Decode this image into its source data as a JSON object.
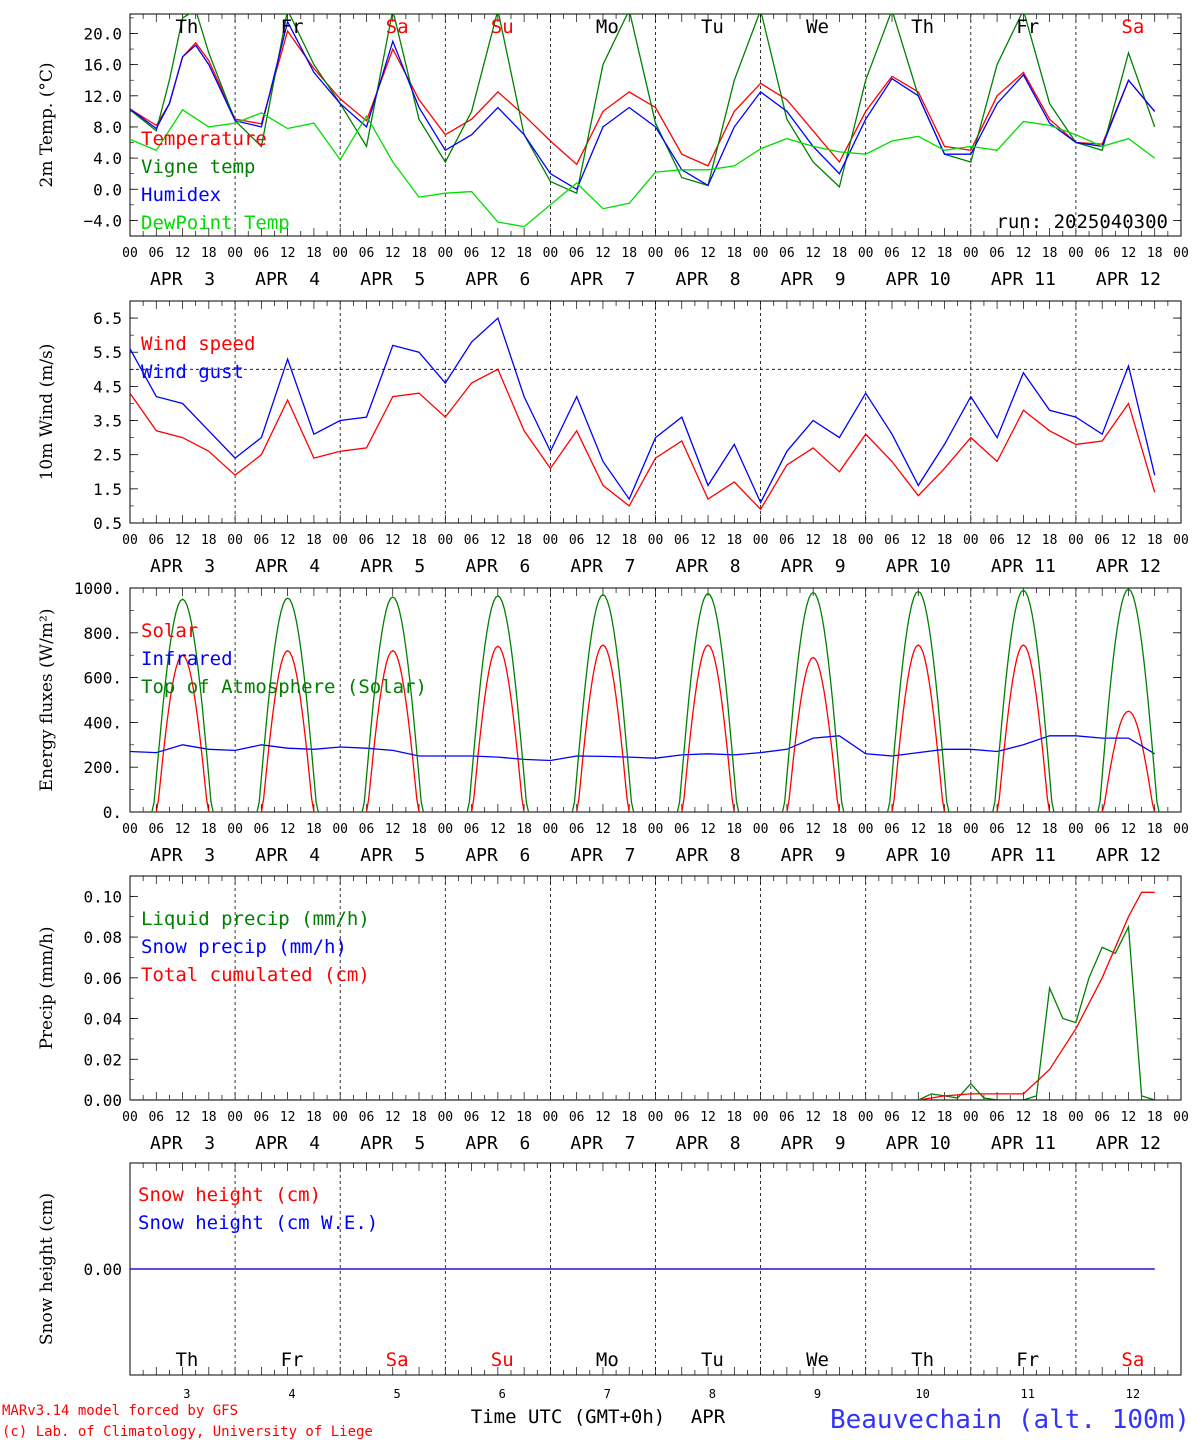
{
  "days": [
    "Th",
    "Fr",
    "Sa",
    "Su",
    "Mo",
    "Tu",
    "We",
    "Th",
    "Fr",
    "Sa"
  ],
  "day_colors": [
    "#000000",
    "#000000",
    "#ff0000",
    "#ff0000",
    "#000000",
    "#000000",
    "#000000",
    "#000000",
    "#000000",
    "#ff0000"
  ],
  "date_labels": [
    "APR  3",
    "APR  4",
    "APR  5",
    "APR  6",
    "APR  7",
    "APR  8",
    "APR  9",
    "APR 10",
    "APR 11",
    "APR 12"
  ],
  "hour_ticks": [
    "00",
    "06",
    "12",
    "18"
  ],
  "last_hour_tick": "00",
  "day_numbers": [
    "3",
    "4",
    "5",
    "6",
    "7",
    "8",
    "9",
    "10",
    "11",
    "12"
  ],
  "run_label": "run: 2025040300",
  "xlabel": "Time UTC (GMT+0h)",
  "month_label": "APR",
  "footer": {
    "line1": "MARv3.14 model forced by GFS",
    "line2": "(c) Lab. of Climatology, University of Liege",
    "station": "Beauvechain (alt. 100m)"
  },
  "colors": {
    "red": "#ff0000",
    "green": "#008000",
    "blue": "#0000ff",
    "lightgreen": "#00dd00",
    "station": "#3333ff"
  },
  "chart_data": [
    {
      "type": "line",
      "ylabel": "2m Temp. (°C)",
      "ylim": [
        -6,
        22.5
      ],
      "yticks": [
        -4,
        0,
        4,
        8,
        12,
        16,
        20
      ],
      "ytick_labels": [
        "−4.0",
        "0.0",
        "4.0",
        "8.0",
        "12.0",
        "16.0",
        "20.0"
      ],
      "series": [
        {
          "name": "Temperature",
          "color": "#ff0000",
          "x": [
            0,
            6,
            9,
            12,
            15,
            18,
            24,
            30,
            36,
            42,
            48,
            54,
            60,
            66,
            72,
            78,
            84,
            90,
            96,
            102,
            108,
            114,
            120,
            126,
            132,
            138,
            144,
            150,
            156,
            162,
            168,
            174,
            180,
            186,
            192,
            198,
            204,
            210,
            216,
            222,
            228,
            234
          ],
          "y": [
            10.3,
            8.2,
            11,
            17,
            18.8,
            16.5,
            9.0,
            8.4,
            20.3,
            15.5,
            11.6,
            8.8,
            18.0,
            11.5,
            7.0,
            9.0,
            12.5,
            9.5,
            6.2,
            3.2,
            10.0,
            12.5,
            10.5,
            4.5,
            3.0,
            10.0,
            13.6,
            11.5,
            7.5,
            3.5,
            10.0,
            14.5,
            12.5,
            5.5,
            5.0,
            12.0,
            15.0,
            9.0,
            6.0,
            5.8,
            14.0,
            10.0
          ]
        },
        {
          "name": "Vigne temp",
          "color": "#008000",
          "x": [
            0,
            6,
            9,
            12,
            15,
            18,
            24,
            30,
            36,
            42,
            48,
            54,
            60,
            66,
            72,
            78,
            84,
            90,
            96,
            102,
            108,
            114,
            120,
            126,
            132,
            138,
            144,
            150,
            156,
            162,
            168,
            174,
            180,
            186,
            192,
            198,
            204,
            210,
            216,
            222,
            228,
            234
          ],
          "y": [
            10.2,
            7.5,
            14,
            22,
            23,
            17.5,
            8.8,
            5.5,
            23,
            16,
            11,
            5.5,
            23,
            9,
            3.5,
            10,
            23,
            7,
            1,
            -0.5,
            16,
            23,
            8.5,
            1.5,
            0.5,
            14.0,
            23.0,
            9.0,
            3.5,
            0.3,
            14,
            23,
            12,
            4.5,
            3.5,
            16,
            23,
            11,
            6.0,
            5.0,
            17.5,
            8.0
          ]
        },
        {
          "name": "Humidex",
          "color": "#0000ff",
          "x": [
            0,
            6,
            9,
            12,
            15,
            18,
            24,
            30,
            36,
            42,
            48,
            54,
            60,
            66,
            72,
            78,
            84,
            90,
            96,
            102,
            108,
            114,
            120,
            126,
            132,
            138,
            144,
            150,
            156,
            162,
            168,
            174,
            180,
            186,
            192,
            198,
            204,
            210,
            216,
            222,
            228,
            234
          ],
          "y": [
            10.3,
            7.8,
            11,
            17,
            18.5,
            16.0,
            8.8,
            8.0,
            21.5,
            15.0,
            11.0,
            8.0,
            19.0,
            10.5,
            5.0,
            7.0,
            10.5,
            7.0,
            2.0,
            0.0,
            8.0,
            10.5,
            8.0,
            2.5,
            0.5,
            8.0,
            12.5,
            10.0,
            5.5,
            2.0,
            9.0,
            14.2,
            12.0,
            4.5,
            4.5,
            11.0,
            14.7,
            8.5,
            6.0,
            5.5,
            14.0,
            10.0
          ]
        },
        {
          "name": "DewPoint Temp",
          "color": "#00dd00",
          "x": [
            0,
            6,
            12,
            18,
            24,
            30,
            36,
            42,
            48,
            54,
            60,
            66,
            72,
            78,
            84,
            90,
            96,
            102,
            108,
            114,
            120,
            126,
            132,
            138,
            144,
            150,
            156,
            162,
            168,
            174,
            180,
            186,
            192,
            198,
            204,
            210,
            216,
            222,
            228,
            234
          ],
          "y": [
            6.4,
            5.0,
            10.2,
            8.0,
            8.5,
            9.8,
            7.8,
            8.5,
            3.8,
            9.4,
            3.5,
            -1.0,
            -0.5,
            -0.3,
            -4.2,
            -4.8,
            -2.0,
            0.8,
            -2.5,
            -1.8,
            2.2,
            2.5,
            2.5,
            3.0,
            5.2,
            6.5,
            5.5,
            4.8,
            4.5,
            6.2,
            6.8,
            5.0,
            5.5,
            5.0,
            8.7,
            8.2,
            7.0,
            5.5,
            6.5,
            4.0
          ]
        }
      ]
    },
    {
      "type": "line",
      "ylabel": "10m Wind (m/s)",
      "ylim": [
        0.5,
        7.0
      ],
      "yticks": [
        0.5,
        1.5,
        2.5,
        3.5,
        4.5,
        5.5,
        6.5
      ],
      "ytick_labels": [
        "0.5",
        "1.5",
        "2.5",
        "3.5",
        "4.5",
        "5.5",
        "6.5"
      ],
      "reference_line": 5.0,
      "series": [
        {
          "name": "Wind speed",
          "color": "#ff0000",
          "x": [
            0,
            6,
            12,
            18,
            24,
            30,
            36,
            42,
            48,
            54,
            60,
            66,
            72,
            78,
            84,
            90,
            96,
            102,
            108,
            114,
            120,
            126,
            132,
            138,
            144,
            150,
            156,
            162,
            168,
            174,
            180,
            186,
            192,
            198,
            204,
            210,
            216,
            222,
            228,
            234
          ],
          "y": [
            4.3,
            3.2,
            3.0,
            2.6,
            1.9,
            2.5,
            4.1,
            2.4,
            2.6,
            2.7,
            4.2,
            4.3,
            3.6,
            4.6,
            5.0,
            3.2,
            2.1,
            3.2,
            1.6,
            1.0,
            2.4,
            2.9,
            1.2,
            1.7,
            0.9,
            2.2,
            2.7,
            2.0,
            3.1,
            2.3,
            1.3,
            2.1,
            3.0,
            2.3,
            3.8,
            3.2,
            2.8,
            2.9,
            4.0,
            1.4
          ]
        },
        {
          "name": "Wind gust",
          "color": "#0000ff",
          "x": [
            0,
            6,
            12,
            18,
            24,
            30,
            36,
            42,
            48,
            54,
            60,
            66,
            72,
            78,
            84,
            90,
            96,
            102,
            108,
            114,
            120,
            126,
            132,
            138,
            144,
            150,
            156,
            162,
            168,
            174,
            180,
            186,
            192,
            198,
            204,
            210,
            216,
            222,
            228,
            234
          ],
          "y": [
            5.6,
            4.2,
            4.0,
            3.2,
            2.4,
            3.0,
            5.3,
            3.1,
            3.5,
            3.6,
            5.7,
            5.5,
            4.6,
            5.8,
            6.5,
            4.2,
            2.6,
            4.2,
            2.3,
            1.2,
            3.0,
            3.6,
            1.6,
            2.8,
            1.1,
            2.6,
            3.5,
            3.0,
            4.3,
            3.1,
            1.6,
            2.8,
            4.2,
            3.0,
            4.9,
            3.8,
            3.6,
            3.1,
            5.1,
            1.9
          ]
        }
      ]
    },
    {
      "type": "line",
      "ylabel": "Energy fluxes (W/m²)",
      "ylim": [
        0,
        1000
      ],
      "yticks": [
        0,
        200,
        400,
        600,
        800,
        1000
      ],
      "ytick_labels": [
        "0.",
        "200.",
        "400.",
        "600.",
        "800.",
        "1000."
      ],
      "series": [
        {
          "name": "Solar",
          "color": "#ff0000",
          "peaks": [
            700,
            720,
            720,
            740,
            745,
            745,
            690,
            745,
            745,
            450
          ]
        },
        {
          "name": "Infrared",
          "color": "#0000ff",
          "x": [
            0,
            6,
            12,
            18,
            24,
            30,
            36,
            42,
            48,
            54,
            60,
            66,
            72,
            78,
            84,
            90,
            96,
            102,
            108,
            114,
            120,
            126,
            132,
            138,
            144,
            150,
            156,
            162,
            168,
            174,
            180,
            186,
            192,
            198,
            204,
            210,
            216,
            222,
            228,
            234
          ],
          "y": [
            270,
            265,
            300,
            280,
            275,
            300,
            285,
            280,
            290,
            285,
            275,
            250,
            250,
            250,
            245,
            235,
            230,
            250,
            248,
            245,
            240,
            255,
            260,
            255,
            265,
            280,
            330,
            340,
            260,
            250,
            265,
            280,
            280,
            270,
            300,
            340,
            340,
            330,
            330,
            260
          ]
        },
        {
          "name": "Top of Atmosphere (Solar)",
          "color": "#008000",
          "peaks": [
            950,
            955,
            960,
            965,
            970,
            975,
            980,
            985,
            990,
            995
          ]
        }
      ]
    },
    {
      "type": "line",
      "ylabel": "Precip (mm/h)",
      "ylim": [
        0,
        0.11
      ],
      "yticks": [
        0,
        0.02,
        0.04,
        0.06,
        0.08,
        0.1
      ],
      "ytick_labels": [
        "0.00",
        "0.02",
        "0.04",
        "0.06",
        "0.08",
        "0.10"
      ],
      "series": [
        {
          "name": "Liquid precip (mm/h)",
          "color": "#008000",
          "x": [
            0,
            180,
            183,
            186,
            189,
            192,
            195,
            198,
            201,
            204,
            207,
            210,
            213,
            216,
            219,
            222,
            225,
            228,
            231,
            234
          ],
          "y": [
            0,
            0,
            0.003,
            0.002,
            0.001,
            0.008,
            0.001,
            0,
            0,
            0,
            0.002,
            0.055,
            0.04,
            0.038,
            0.06,
            0.075,
            0.072,
            0.085,
            0.002,
            0
          ]
        },
        {
          "name": "Snow precip (mm/h)",
          "color": "#0000ff",
          "x": [
            0,
            234
          ],
          "y": [
            0,
            0
          ]
        },
        {
          "name": "Total cumulated (cm)",
          "color": "#ff0000",
          "x": [
            0,
            180,
            186,
            192,
            198,
            204,
            210,
            216,
            222,
            228,
            231,
            234
          ],
          "y": [
            0,
            0,
            0.002,
            0.003,
            0.003,
            0.003,
            0.015,
            0.035,
            0.06,
            0.09,
            0.102,
            0.102
          ]
        }
      ]
    },
    {
      "type": "line",
      "ylabel": "Snow height (cm)",
      "ylim": [
        -1,
        1
      ],
      "yticks": [
        0
      ],
      "ytick_labels": [
        "0.00"
      ],
      "series": [
        {
          "name": "Snow height (cm)",
          "color": "#ff0000",
          "x": [
            0,
            234
          ],
          "y": [
            0,
            0
          ]
        },
        {
          "name": "Snow height (cm W.E.)",
          "color": "#0000ff",
          "x": [
            0,
            234
          ],
          "y": [
            0,
            0
          ]
        }
      ]
    }
  ]
}
